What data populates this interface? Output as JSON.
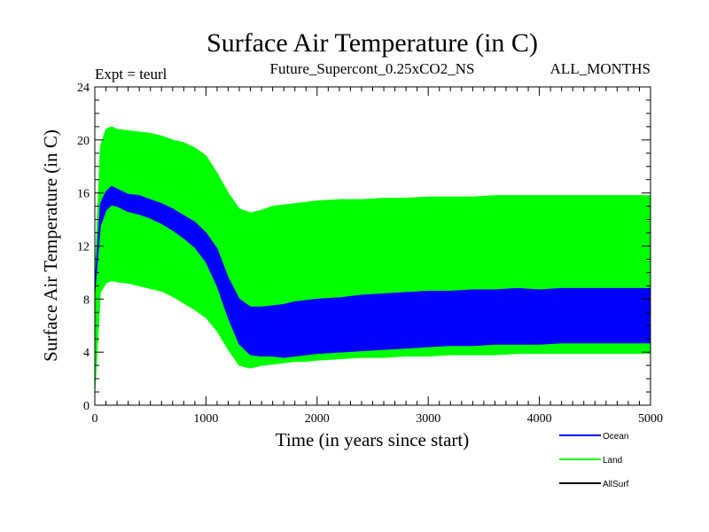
{
  "chart_data": {
    "type": "area",
    "title": "Surface Air Temperature (in C)",
    "subtitle_left": "Expt = teurl",
    "subtitle_center": "Future_Supercont_0.25xCO2_NS",
    "subtitle_right": "ALL_MONTHS",
    "xlabel": "Time (in years since start)",
    "ylabel": "Surface Air Temperature (in C)",
    "xlim": [
      0,
      5000
    ],
    "ylim": [
      0,
      24
    ],
    "xticks": [
      "0",
      "1000",
      "2000",
      "3000",
      "4000",
      "5000"
    ],
    "yticks": [
      "0",
      "4",
      "8",
      "12",
      "16",
      "20",
      "24"
    ],
    "grid": false,
    "legend_position": "bottom-right",
    "x": [
      0,
      50,
      100,
      150,
      200,
      300,
      400,
      500,
      600,
      700,
      800,
      900,
      1000,
      1100,
      1200,
      1300,
      1400,
      1500,
      1600,
      1700,
      1800,
      1900,
      2000,
      2200,
      2400,
      2600,
      2800,
      3000,
      3200,
      3400,
      3600,
      3800,
      4000,
      4200,
      4400,
      4600,
      4800,
      5000
    ],
    "series": [
      {
        "name": "Ocean",
        "color": "#0000ff",
        "upper": [
          9.0,
          15.2,
          16.1,
          16.5,
          16.3,
          15.9,
          15.8,
          15.5,
          15.2,
          14.8,
          14.3,
          13.8,
          13.0,
          11.8,
          9.6,
          8.0,
          7.4,
          7.4,
          7.5,
          7.6,
          7.8,
          7.9,
          8.0,
          8.1,
          8.3,
          8.4,
          8.5,
          8.6,
          8.6,
          8.7,
          8.7,
          8.8,
          8.7,
          8.8,
          8.8,
          8.8,
          8.8,
          8.8
        ],
        "lower": [
          8.5,
          13.5,
          14.7,
          15.1,
          15.0,
          14.6,
          14.4,
          14.1,
          13.7,
          13.2,
          12.6,
          11.9,
          10.8,
          9.0,
          6.6,
          4.6,
          3.8,
          3.7,
          3.7,
          3.6,
          3.7,
          3.8,
          3.9,
          4.0,
          4.1,
          4.2,
          4.3,
          4.4,
          4.5,
          4.5,
          4.6,
          4.6,
          4.6,
          4.7,
          4.7,
          4.7,
          4.7,
          4.7
        ]
      },
      {
        "name": "Land",
        "color": "#00ff00",
        "upper": [
          9.5,
          19.5,
          20.8,
          21.0,
          20.8,
          20.7,
          20.6,
          20.5,
          20.3,
          20.0,
          19.8,
          19.4,
          18.8,
          17.5,
          16.0,
          14.8,
          14.5,
          14.7,
          15.0,
          15.1,
          15.2,
          15.3,
          15.4,
          15.5,
          15.5,
          15.6,
          15.6,
          15.7,
          15.7,
          15.7,
          15.8,
          15.8,
          15.8,
          15.8,
          15.8,
          15.8,
          15.8,
          15.8
        ],
        "lower": [
          1.0,
          8.5,
          9.2,
          9.4,
          9.3,
          9.2,
          9.0,
          8.8,
          8.6,
          8.2,
          7.7,
          7.2,
          6.6,
          5.6,
          4.2,
          3.0,
          2.8,
          3.0,
          3.1,
          3.2,
          3.3,
          3.3,
          3.4,
          3.5,
          3.6,
          3.6,
          3.7,
          3.7,
          3.8,
          3.8,
          3.8,
          3.9,
          3.9,
          3.9,
          3.9,
          3.9,
          3.9,
          3.9
        ]
      },
      {
        "name": "AllSurf",
        "color": "#000000",
        "upper": [],
        "lower": []
      }
    ]
  }
}
